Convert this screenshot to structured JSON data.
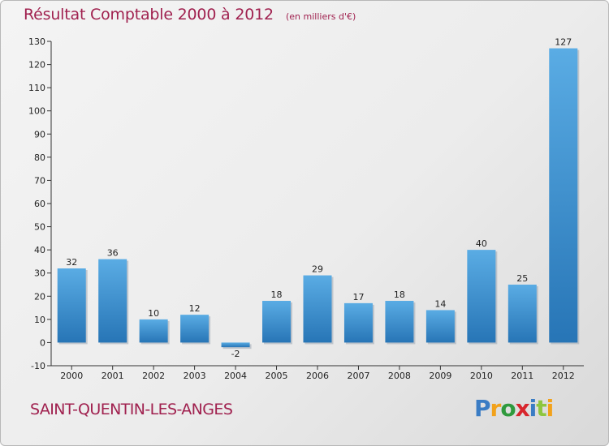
{
  "header": {
    "title": "Résultat Comptable 2000 à 2012",
    "subtitle": "(en milliers d'€)"
  },
  "footer": {
    "commune": "SAINT-QUENTIN-LES-ANGES",
    "logo": [
      "P",
      "r",
      "o",
      "x",
      "i",
      "t",
      "i"
    ]
  },
  "colors": {
    "title": "#a0214f",
    "bar_light": "#5aace4",
    "bar_dark": "#2775b6"
  },
  "chart_data": {
    "type": "bar",
    "title": "Résultat Comptable 2000 à 2012",
    "subtitle": "(en milliers d'€)",
    "xlabel": "",
    "ylabel": "",
    "categories": [
      "2000",
      "2001",
      "2002",
      "2003",
      "2004",
      "2005",
      "2006",
      "2007",
      "2008",
      "2009",
      "2010",
      "2011",
      "2012"
    ],
    "values": [
      32,
      36,
      10,
      12,
      -2,
      18,
      29,
      17,
      18,
      14,
      40,
      25,
      127
    ],
    "ylim": [
      -10,
      130
    ],
    "yticks": [
      -10,
      0,
      10,
      20,
      30,
      40,
      50,
      60,
      70,
      80,
      90,
      100,
      110,
      120,
      130
    ],
    "grid": false,
    "legend": "none"
  }
}
